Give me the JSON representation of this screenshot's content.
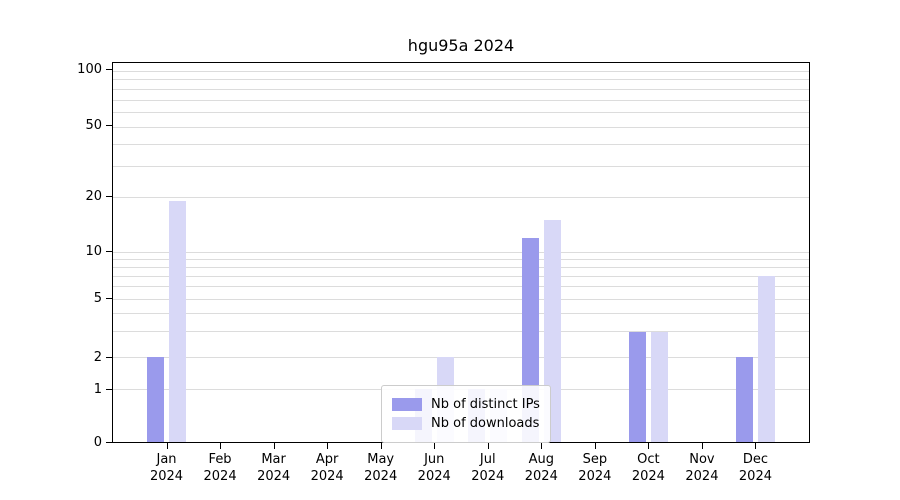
{
  "title": "hgu95a 2024",
  "chart_data": {
    "type": "bar",
    "title": "hgu95a 2024",
    "categories": [
      "Jan",
      "Feb",
      "Mar",
      "Apr",
      "May",
      "Jun",
      "Jul",
      "Aug",
      "Sep",
      "Oct",
      "Nov",
      "Dec"
    ],
    "year": "2024",
    "series": [
      {
        "name": "Nb of distinct IPs",
        "color": "#9a9aec",
        "values": [
          2,
          0,
          0,
          0,
          0,
          1,
          1,
          12,
          0,
          3,
          0,
          2
        ]
      },
      {
        "name": "Nb of downloads",
        "color": "#d8d8f7",
        "values": [
          19,
          0,
          0,
          0,
          0,
          2,
          1,
          15,
          0,
          3,
          0,
          7
        ]
      }
    ],
    "y_ticks": [
      0,
      1,
      2,
      5,
      10,
      20,
      50,
      100
    ],
    "y_minor_gridlines": [
      3,
      4,
      6,
      7,
      8,
      9,
      30,
      40,
      60,
      70,
      80,
      90
    ],
    "scale_anchors": [
      [
        0,
        0.0
      ],
      [
        1,
        0.139
      ],
      [
        2,
        0.223
      ],
      [
        5,
        0.378
      ],
      [
        10,
        0.501
      ],
      [
        20,
        0.646
      ],
      [
        50,
        0.832
      ],
      [
        100,
        0.979
      ]
    ],
    "ylim": [
      0,
      105
    ],
    "grid": true,
    "legend_position": "lower center",
    "gridline_color": "#dcdcdc",
    "axis_color": "#000000"
  }
}
